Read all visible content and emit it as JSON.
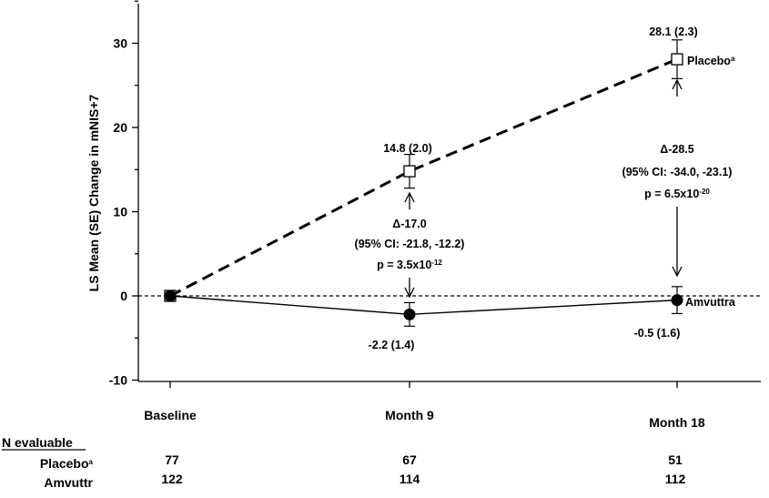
{
  "chart_data": {
    "type": "line",
    "ylabel": "LS Mean (SE) Change in mNIS+7",
    "categories": [
      "Baseline",
      "Month 9",
      "Month 18"
    ],
    "ylim": [
      -10,
      35
    ],
    "yticks": [
      -10,
      0,
      10,
      20,
      30
    ],
    "y_minor_step": 5,
    "reference_line_y": 0,
    "series": [
      {
        "name": "Placebo",
        "name_sup": "a",
        "style": "dashed",
        "marker": "open-square",
        "values": [
          0,
          14.8,
          28.1
        ],
        "se": [
          0,
          2.0,
          2.3
        ],
        "labels": [
          "",
          "14.8 (2.0)",
          "28.1 (2.3)"
        ]
      },
      {
        "name": "Amvuttra",
        "style": "solid",
        "marker": "filled-circle",
        "values": [
          0,
          -2.2,
          -0.5
        ],
        "se": [
          0,
          1.4,
          1.6
        ],
        "labels": [
          "",
          "-2.2 (1.4)",
          "-0.5 (1.6)"
        ]
      }
    ],
    "annotations": [
      {
        "category": "Month 9",
        "delta": "Δ-17.0",
        "ci": "(95% CI: -21.8, -12.2)",
        "p_base": "p = 3.5x10",
        "p_exp": "-12"
      },
      {
        "category": "Month 18",
        "delta": "Δ-28.5",
        "ci": "(95% CI: -34.0, -23.1)",
        "p_base": "p = 6.5x10",
        "p_exp": "-20"
      }
    ],
    "table": {
      "header": "N evaluable",
      "rows": [
        {
          "label": "Placebo",
          "label_sup": "a",
          "values": [
            "77",
            "67",
            "51"
          ]
        },
        {
          "label": "Amvuttr",
          "label_sup": "",
          "values": [
            "122",
            "114",
            "112"
          ]
        }
      ]
    }
  }
}
